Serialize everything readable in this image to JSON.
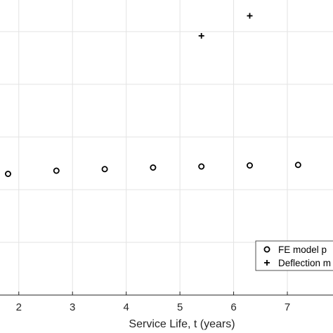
{
  "chart_data": {
    "type": "scatter",
    "xlabel": "Service Life, t (years)",
    "ylabel": "",
    "xlim": [
      1.65,
      7.85
    ],
    "ylim": [
      0,
      5.6
    ],
    "x_ticks": [
      "2",
      "3",
      "4",
      "5",
      "6",
      "7"
    ],
    "y_gridlines": [
      1,
      2,
      3,
      4,
      5
    ],
    "grid": true,
    "legend_position": "bottom-right",
    "series": [
      {
        "name": "FE model p",
        "marker": "circle",
        "x": [
          1.8,
          2.7,
          3.6,
          4.5,
          5.4,
          6.3,
          7.2
        ],
        "y": [
          2.3,
          2.36,
          2.39,
          2.42,
          2.44,
          2.46,
          2.47
        ]
      },
      {
        "name": "Deflection m",
        "marker": "plus",
        "x": [
          5.4,
          6.3
        ],
        "y": [
          4.92,
          5.3
        ]
      }
    ]
  }
}
